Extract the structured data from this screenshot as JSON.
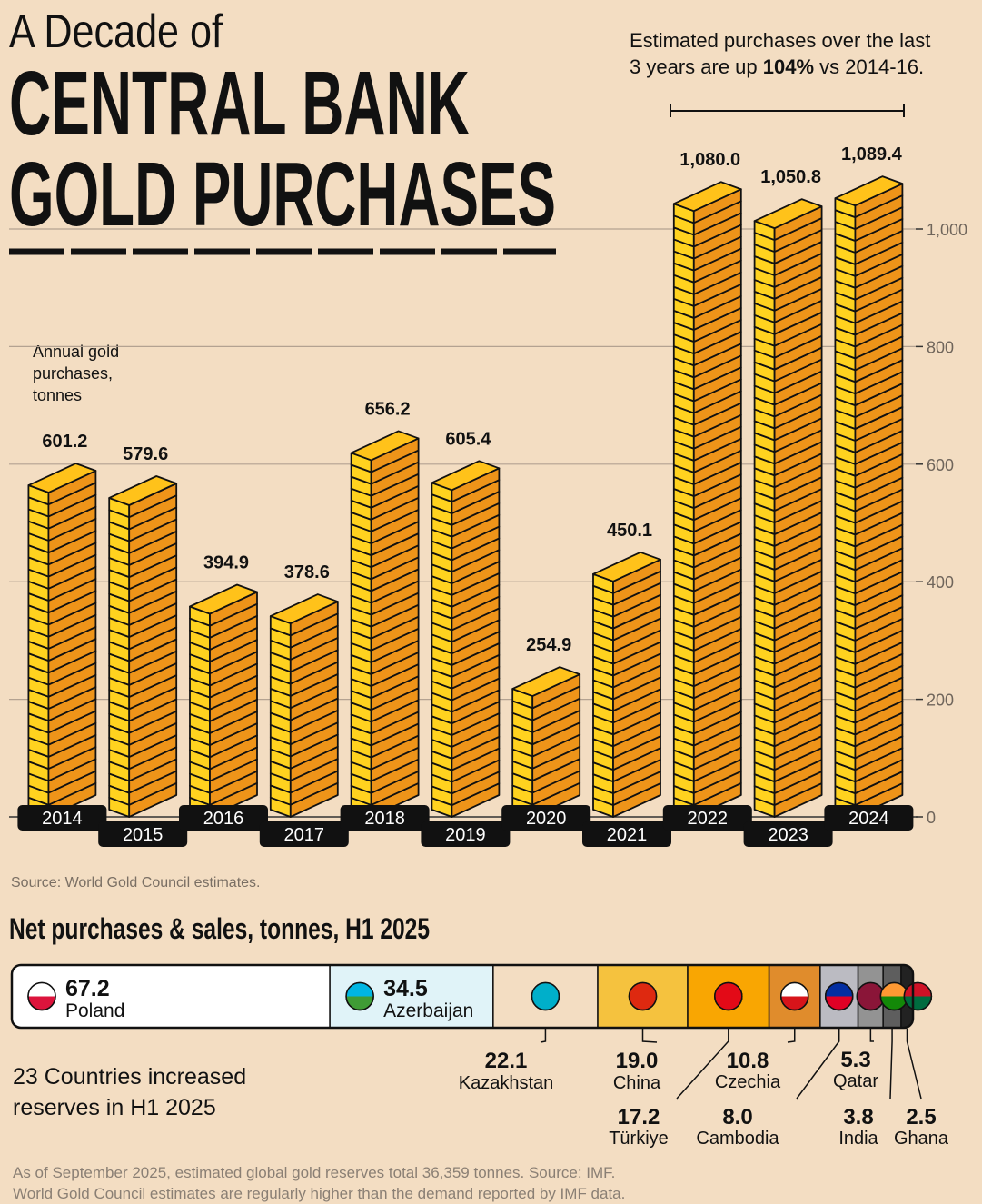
{
  "header": {
    "kicker": "A Decade of",
    "title_lines": [
      "CENTRAL BANK",
      "GOLD PURCHASES"
    ]
  },
  "chart_data": [
    {
      "type": "bar",
      "annotation": [
        "Estimated purchases over the last",
        "3 years are up ",
        "104%",
        " vs 2014-16."
      ],
      "ylabel": [
        "Annual gold",
        "purchases,",
        "tonnes"
      ],
      "categories": [
        "2014",
        "2015",
        "2016",
        "2017",
        "2018",
        "2019",
        "2020",
        "2021",
        "2022",
        "2023",
        "2024"
      ],
      "values": [
        601.2,
        579.6,
        394.9,
        378.6,
        656.2,
        605.4,
        254.9,
        450.1,
        1080.0,
        1050.8,
        1089.4
      ],
      "value_labels": [
        "601.2",
        "579.6",
        "394.9",
        "378.6",
        "656.2",
        "605.4",
        "254.9",
        "450.1",
        "1,080.0",
        "1,050.8",
        "1,089.4"
      ],
      "ylim": [
        0,
        1200
      ],
      "yticks": [
        0,
        200,
        400,
        600,
        800,
        {
          "value": 1000,
          "label": "1,000"
        }
      ],
      "grid": true,
      "source": "Source: World Gold Council estimates."
    },
    {
      "type": "stacked-bar",
      "title": "Net purchases & sales, tonnes, H1 2025",
      "series": [
        {
          "name": "Poland",
          "color": "#ffffff",
          "values": [
            67.2
          ],
          "value_labels": [
            "67.2"
          ]
        },
        {
          "name": "Azerbaijan",
          "color": "#e0f3f8",
          "values": [
            34.5
          ],
          "value_labels": [
            "34.5"
          ]
        },
        {
          "name": "Kazakhstan",
          "color": "#f3ddc2",
          "values": [
            22.1
          ],
          "value_labels": [
            "22.1"
          ]
        },
        {
          "name": "China",
          "color": "#f5c23e",
          "values": [
            19.0
          ],
          "value_labels": [
            "19.0"
          ]
        },
        {
          "name": "Türkiye",
          "color": "#f9a602",
          "values": [
            17.2
          ],
          "value_labels": [
            "17.2"
          ]
        },
        {
          "name": "Czechia",
          "color": "#e08c2c",
          "values": [
            10.8
          ],
          "value_labels": [
            "10.8"
          ]
        },
        {
          "name": "Cambodia",
          "color": "#bbbbc2",
          "values": [
            8.0
          ],
          "value_labels": [
            "8.0"
          ]
        },
        {
          "name": "Qatar",
          "color": "#939393",
          "values": [
            5.3
          ],
          "value_labels": [
            "5.3"
          ]
        },
        {
          "name": "India",
          "color": "#5e5e5e",
          "values": [
            3.8
          ],
          "value_labels": [
            "3.8"
          ]
        },
        {
          "name": "Ghana",
          "color": "#222222",
          "values": [
            2.5
          ],
          "value_labels": [
            "2.5"
          ]
        }
      ],
      "note": [
        "23 Countries increased",
        "reserves in H1 2025"
      ]
    }
  ],
  "footnote": [
    "As of September 2025, estimated global gold reserves total 36,359 tonnes. Source: IMF.",
    "World Gold Council estimates are regularly higher than the demand reported by IMF data."
  ]
}
